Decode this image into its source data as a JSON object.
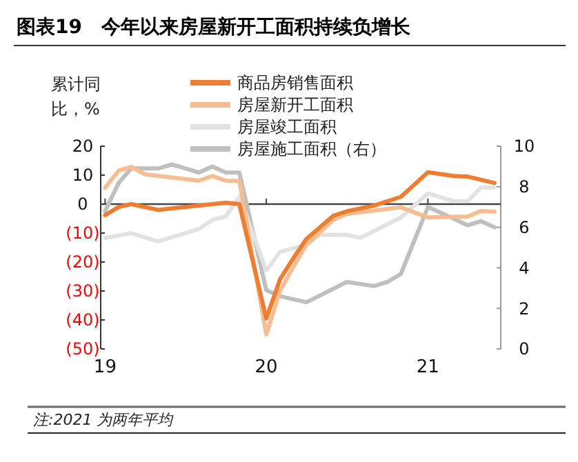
{
  "chart_data": {
    "type": "line",
    "title": "图表19　今年以来房屋新开工面积持续负增长",
    "ylabel": "累计同比，%",
    "annotations": [
      "注:2021 为两年平均"
    ],
    "xlim": [
      "2018-12-22",
      "2021-06-15"
    ],
    "xticks": [
      {
        "value": "2019-01",
        "label": "19"
      },
      {
        "value": "2020-01",
        "label": "20"
      },
      {
        "value": "2021-01",
        "label": "21"
      }
    ],
    "ylim": [
      -50,
      20
    ],
    "yticks": [
      {
        "value": -50,
        "label": "(50)"
      },
      {
        "value": -40,
        "label": "(40)"
      },
      {
        "value": -30,
        "label": "(30)"
      },
      {
        "value": -20,
        "label": "(20)"
      },
      {
        "value": -10,
        "label": "(10)"
      },
      0,
      10,
      20
    ],
    "ref_lines": [
      {
        "axis": "y",
        "value": 0,
        "color": "#444444"
      }
    ],
    "y2lim": [
      0,
      10
    ],
    "y2ticks": [
      0,
      2,
      4,
      6,
      8,
      10
    ],
    "grid": false,
    "legend": "top",
    "line_style": "solid",
    "series": [
      {
        "name": "商品房销售面积",
        "color": "#ed7d31",
        "x": [
          "2019-01",
          "2019-02",
          "2019-03",
          "2019-05",
          "2019-09",
          "2019-10",
          "2019-11",
          "2020-01",
          "2020-02",
          "2020-03",
          "2020-04",
          "2020-06",
          "2020-07",
          "2020-09",
          "2020-11",
          "2021-01",
          "2021-03",
          "2021-04",
          "2021-06"
        ],
        "values": [
          -3.8,
          -1,
          0,
          -2,
          0,
          0.5,
          0,
          -39.5,
          -26,
          -19,
          -12,
          -4,
          -2.5,
          -0.5,
          2.5,
          11,
          9.7,
          9.5,
          7.3
        ]
      },
      {
        "name": "房屋新开工面积",
        "color": "#f7bd92",
        "x": [
          "2019-01",
          "2019-02",
          "2019-03",
          "2019-04",
          "2019-08",
          "2019-09",
          "2019-10",
          "2019-11",
          "2020-01",
          "2020-02",
          "2020-03",
          "2020-04",
          "2020-06",
          "2020-07",
          "2020-11",
          "2021-01",
          "2021-04",
          "2021-05",
          "2021-06"
        ],
        "values": [
          5.7,
          11.6,
          12.9,
          10.3,
          8.1,
          9.7,
          8.1,
          8,
          -45,
          -30,
          -22,
          -14,
          -5.4,
          -3.4,
          -1.1,
          -4.6,
          -4.3,
          -2.4,
          -2.6
        ]
      },
      {
        "name": "房屋竣工面积",
        "color": "#e2e2e2",
        "x": [
          "2019-01",
          "2019-03",
          "2019-05",
          "2019-08",
          "2019-09",
          "2019-10",
          "2019-11",
          "2020-01",
          "2020-02",
          "2020-04",
          "2020-05",
          "2020-07",
          "2020-08",
          "2020-11",
          "2021-01",
          "2021-03",
          "2021-04",
          "2021-05",
          "2021-06"
        ],
        "values": [
          -11.7,
          -10,
          -12.9,
          -8.6,
          -5.4,
          -4.3,
          2.5,
          -22.9,
          -16.5,
          -14,
          -10.6,
          -10.6,
          -11.7,
          -4.6,
          3.7,
          1,
          1,
          5.7,
          5.7
        ]
      },
      {
        "name": "房屋施工面积（右）",
        "color": "#bfbfbf",
        "axis": "y2",
        "x": [
          "2019-01",
          "2019-02",
          "2019-03",
          "2019-05",
          "2019-06",
          "2019-08",
          "2019-09",
          "2019-10",
          "2019-11",
          "2020-01",
          "2020-02",
          "2020-04",
          "2020-07",
          "2020-09",
          "2020-10",
          "2020-11",
          "2021-01",
          "2021-02",
          "2021-04",
          "2021-05",
          "2021-06"
        ],
        "values": [
          6.8,
          8.2,
          8.9,
          8.9,
          9.1,
          8.7,
          9.0,
          8.7,
          8.7,
          2.9,
          2.6,
          2.3,
          3.3,
          3.1,
          3.3,
          3.7,
          7.0,
          6.7,
          6.1,
          6.3,
          6.0
        ]
      }
    ]
  }
}
